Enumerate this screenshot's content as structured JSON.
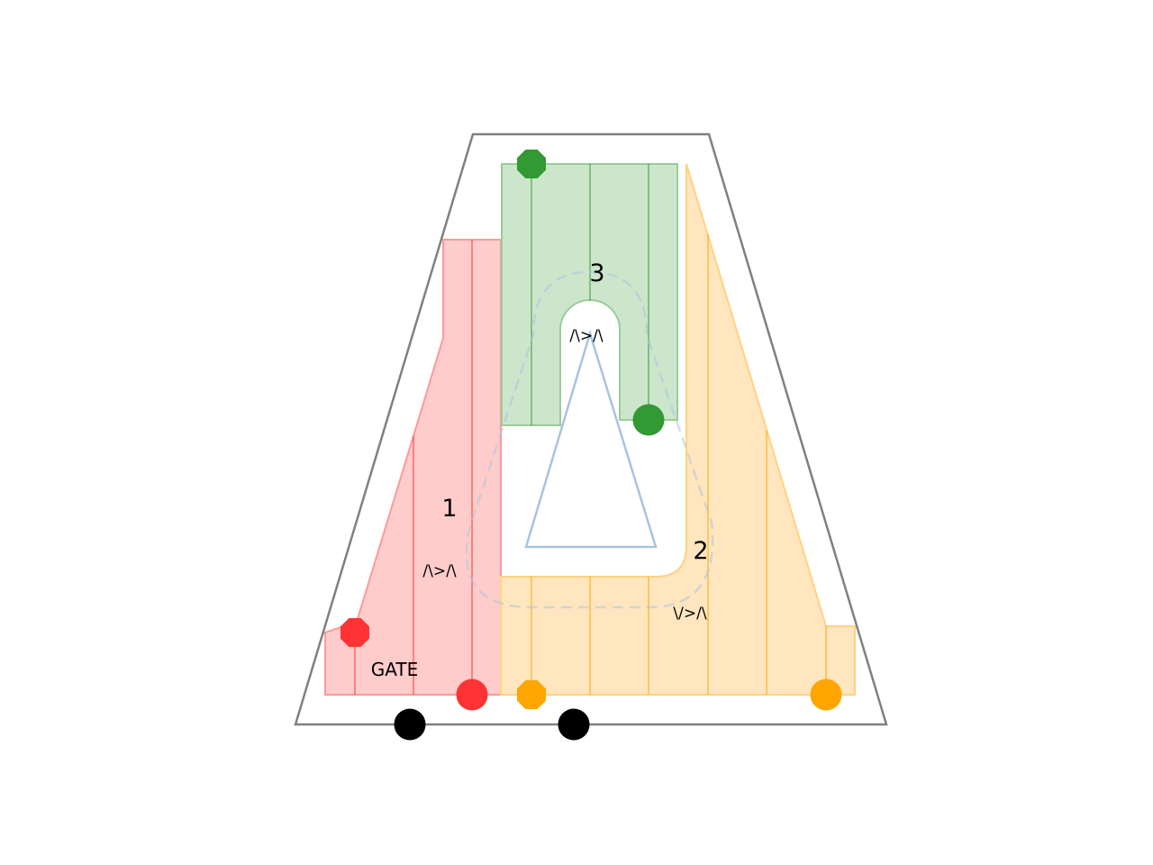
{
  "zones": [
    {
      "id": "zone-1",
      "label": "1",
      "color": "#ff3333",
      "fill": "#ffcccc",
      "annotation": "/\\>/\\"
    },
    {
      "id": "zone-2",
      "label": "2",
      "color": "#ffa500",
      "fill": "#ffe6bf",
      "annotation": "\\/>/\\"
    },
    {
      "id": "zone-3",
      "label": "3",
      "color": "#339933",
      "fill": "#cce6cc",
      "annotation": "/\\>/\\"
    }
  ],
  "gate_label": "GATE",
  "colors": {
    "outline": "#808080",
    "route": "#a9c4de",
    "entrance": "#000000"
  },
  "markers": [
    {
      "zone": "zone-1",
      "kind": "octagon-icon"
    },
    {
      "zone": "zone-1",
      "kind": "circle-icon"
    },
    {
      "zone": "zone-2",
      "kind": "octagon-icon"
    },
    {
      "zone": "zone-2",
      "kind": "circle-icon"
    },
    {
      "zone": "zone-3",
      "kind": "octagon-icon"
    },
    {
      "zone": "zone-3",
      "kind": "circle-icon"
    },
    {
      "zone": "entrance",
      "kind": "circle-icon"
    },
    {
      "zone": "entrance",
      "kind": "circle-icon"
    }
  ]
}
